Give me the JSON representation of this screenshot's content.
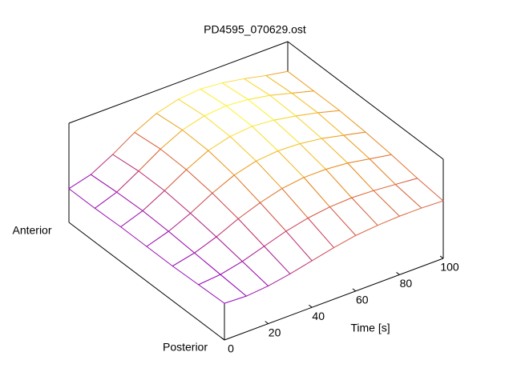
{
  "chart_data": {
    "type": "surface",
    "title": "PD4595_070629.ost",
    "xlabel": "Time [s]",
    "ylabel_front": "Posterior",
    "ylabel_back": "Anterior",
    "x": [
      0,
      10,
      20,
      30,
      40,
      50,
      60,
      70,
      80,
      90,
      100
    ],
    "xlim": [
      0,
      100
    ],
    "xticks": [
      0,
      20,
      40,
      60,
      80,
      100
    ],
    "zlim": [
      0,
      1
    ],
    "palette": [
      "#8a00c8",
      "#c83c64",
      "#e88c1c",
      "#ffff40"
    ],
    "z": [
      [
        0.37,
        0.36,
        0.38,
        0.42,
        0.47,
        0.52,
        0.56,
        0.58,
        0.59,
        0.59,
        0.58
      ],
      [
        0.36,
        0.38,
        0.43,
        0.5,
        0.57,
        0.62,
        0.65,
        0.66,
        0.65,
        0.63,
        0.61
      ],
      [
        0.35,
        0.4,
        0.48,
        0.58,
        0.66,
        0.72,
        0.75,
        0.75,
        0.73,
        0.69,
        0.65
      ],
      [
        0.35,
        0.42,
        0.52,
        0.64,
        0.74,
        0.8,
        0.82,
        0.81,
        0.78,
        0.73,
        0.68
      ],
      [
        0.35,
        0.43,
        0.55,
        0.68,
        0.79,
        0.85,
        0.87,
        0.85,
        0.81,
        0.76,
        0.7
      ],
      [
        0.34,
        0.42,
        0.55,
        0.69,
        0.8,
        0.86,
        0.88,
        0.86,
        0.82,
        0.76,
        0.7
      ],
      [
        0.34,
        0.4,
        0.52,
        0.66,
        0.77,
        0.83,
        0.85,
        0.83,
        0.79,
        0.74,
        0.7
      ]
    ]
  }
}
